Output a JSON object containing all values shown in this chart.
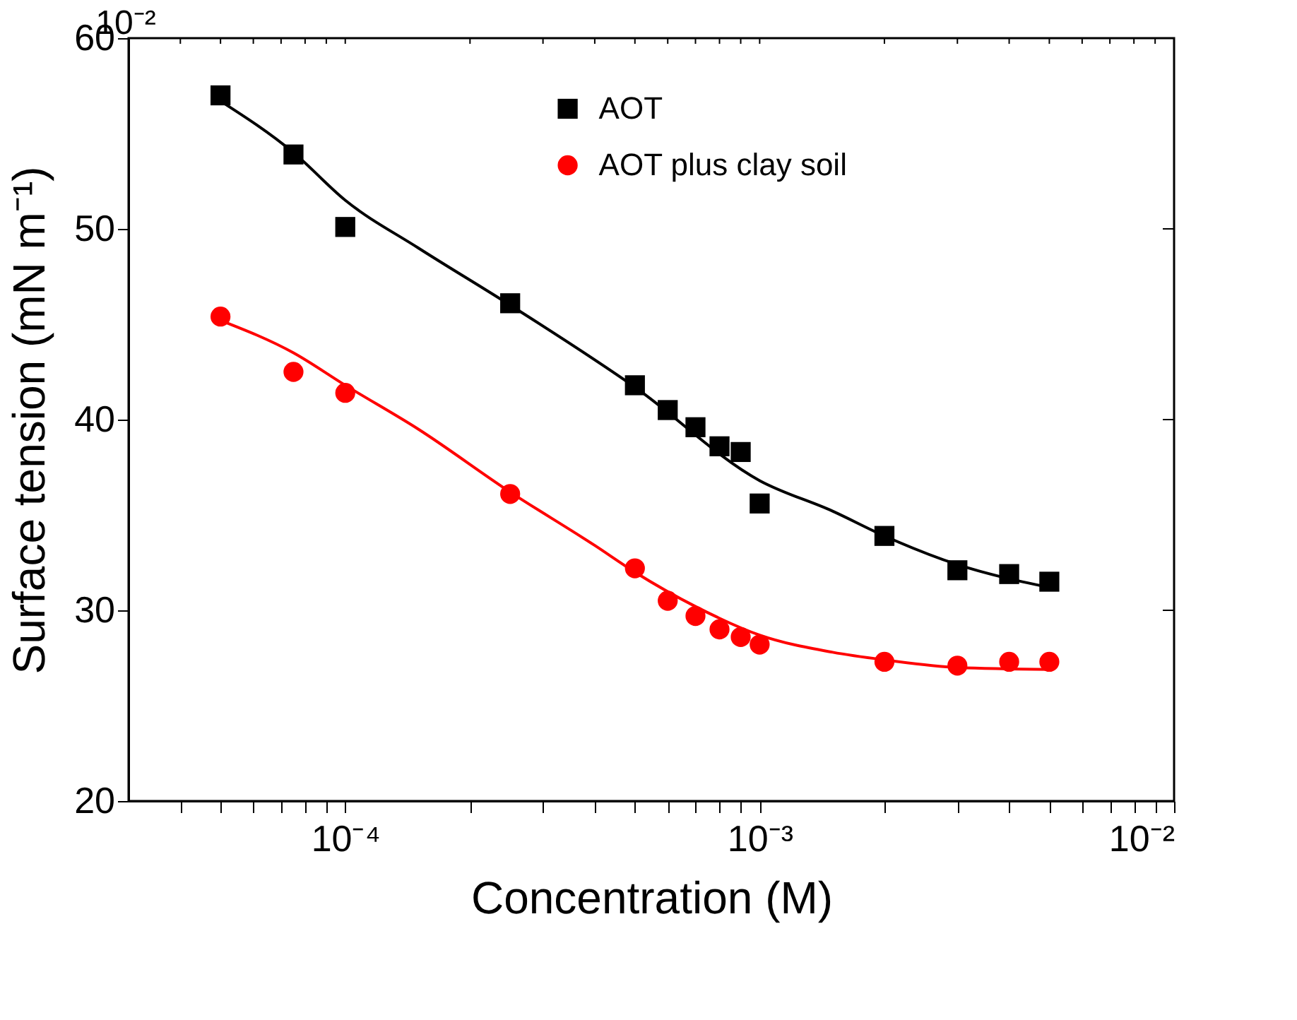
{
  "chart_data": {
    "type": "scatter",
    "xlabel": "Concentration (M)",
    "ylabel": "Surface tension (mN m⁻¹)",
    "log": "x",
    "xlim": [
      3e-05,
      0.01
    ],
    "ylim": [
      20,
      60
    ],
    "xticks": [
      {
        "value": 4e-05,
        "label": null
      },
      {
        "value": 5e-05,
        "label": null
      },
      {
        "value": 6e-05,
        "label": null
      },
      {
        "value": 7e-05,
        "label": null
      },
      {
        "value": 8e-05,
        "label": null
      },
      {
        "value": 9e-05,
        "label": null
      },
      {
        "value": 0.0001,
        "label": "10⁻⁴"
      },
      {
        "value": 0.0002,
        "label": null
      },
      {
        "value": 0.0003,
        "label": null
      },
      {
        "value": 0.0004,
        "label": null
      },
      {
        "value": 0.0005,
        "label": null
      },
      {
        "value": 0.0006,
        "label": null
      },
      {
        "value": 0.0007,
        "label": null
      },
      {
        "value": 0.0008,
        "label": null
      },
      {
        "value": 0.0009,
        "label": null
      },
      {
        "value": 0.001,
        "label": "10⁻³"
      },
      {
        "value": 0.002,
        "label": null
      },
      {
        "value": 0.003,
        "label": null
      },
      {
        "value": 0.004,
        "label": null
      },
      {
        "value": 0.005,
        "label": null
      },
      {
        "value": 0.006,
        "label": null
      },
      {
        "value": 0.007,
        "label": null
      },
      {
        "value": 0.008,
        "label": null
      },
      {
        "value": 0.009,
        "label": null
      },
      {
        "value": 0.01,
        "label": "10⁻²"
      }
    ],
    "yticks": [
      20,
      30,
      40,
      50,
      60
    ],
    "grid": false,
    "legend": "top",
    "annotations": [
      "10⁻²"
    ],
    "series": [
      {
        "type": "line",
        "color": "#000000",
        "marker": "none",
        "line_style": "solid",
        "x": [
          5e-05,
          7.5e-05,
          0.0001,
          0.00015,
          0.00025,
          0.0005,
          0.001,
          0.0015,
          0.002,
          0.003,
          0.005
        ],
        "values": [
          56.7,
          54.0,
          51.5,
          49.0,
          46.0,
          41.7,
          36.8,
          35.2,
          33.9,
          32.4,
          31.2
        ]
      },
      {
        "type": "line",
        "color": "#ff0000",
        "marker": "none",
        "line_style": "solid",
        "x": [
          5e-05,
          7.5e-05,
          0.0001,
          0.00015,
          0.00025,
          0.0004,
          0.0005,
          0.0007,
          0.001,
          0.0015,
          0.002,
          0.003,
          0.005
        ],
        "values": [
          45.2,
          43.5,
          41.8,
          39.5,
          36.2,
          33.4,
          32.0,
          30.2,
          28.7,
          27.8,
          27.4,
          27.0,
          26.9
        ]
      },
      {
        "name": "AOT",
        "color": "#000000",
        "marker": "square",
        "x": [
          5e-05,
          7.5e-05,
          0.0001,
          0.00025,
          0.0005,
          0.0006,
          0.0007,
          0.0008,
          0.0009,
          0.001,
          0.002,
          0.003,
          0.004,
          0.005
        ],
        "values": [
          57.0,
          53.9,
          50.1,
          46.1,
          41.8,
          40.5,
          39.6,
          38.6,
          38.3,
          35.6,
          33.9,
          32.1,
          31.9,
          31.5
        ]
      },
      {
        "name": "AOT plus clay soil",
        "color": "#ff0000",
        "marker": "circle",
        "x": [
          5e-05,
          7.5e-05,
          0.0001,
          0.00025,
          0.0005,
          0.0006,
          0.0007,
          0.0008,
          0.0009,
          0.001,
          0.002,
          0.003,
          0.004,
          0.005
        ],
        "values": [
          45.4,
          42.5,
          41.4,
          36.1,
          32.2,
          30.5,
          29.7,
          29.0,
          28.6,
          28.2,
          27.3,
          27.1,
          27.3,
          27.3
        ]
      }
    ]
  }
}
